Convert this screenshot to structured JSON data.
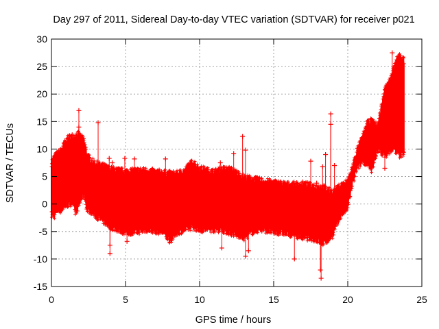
{
  "chart_data": {
    "type": "scatter",
    "title": "Day 297 of 2011, Sidereal Day-to-day VTEC variation (SDTVAR) for receiver p021",
    "xlabel": "GPS time / hours",
    "ylabel": "SDTVAR / TECUs",
    "xlim": [
      0,
      25
    ],
    "ylim": [
      -15,
      30
    ],
    "xticks": [
      0,
      5,
      10,
      15,
      20,
      25
    ],
    "yticks": [
      -15,
      -10,
      -5,
      0,
      5,
      10,
      15,
      20,
      25,
      30
    ],
    "grid": true,
    "marker": "plus",
    "color": "#ff0000",
    "series": [
      {
        "name": "SDTVAR",
        "note": "envelope of dense red point cloud: x in hours, low/high in TECU",
        "envelope": {
          "x": [
            0.0,
            0.2,
            0.4,
            0.6,
            0.8,
            1.0,
            1.2,
            1.4,
            1.6,
            1.8,
            2.0,
            2.2,
            2.4,
            2.6,
            3.0,
            3.5,
            4.0,
            4.5,
            5.0,
            5.5,
            6.0,
            6.5,
            7.0,
            7.5,
            8.0,
            8.5,
            9.0,
            9.3,
            9.6,
            9.9,
            10.2,
            10.5,
            11.0,
            11.5,
            12.0,
            12.5,
            13.0,
            13.5,
            14.0,
            14.5,
            15.0,
            15.5,
            16.0,
            16.5,
            17.0,
            17.5,
            18.0,
            18.3,
            18.6,
            19.0,
            19.5,
            20.0,
            20.3,
            20.6,
            21.0,
            21.3,
            21.6,
            22.0,
            22.3,
            22.6,
            22.9,
            23.2,
            23.5,
            23.8
          ],
          "high": [
            7.5,
            8.5,
            9.0,
            9.5,
            10.5,
            11.5,
            12.0,
            12.2,
            12.4,
            12.6,
            12.0,
            11.5,
            9.0,
            8.0,
            7.2,
            6.8,
            6.2,
            6.0,
            5.8,
            5.9,
            6.0,
            6.0,
            5.7,
            5.6,
            5.4,
            5.4,
            6.0,
            7.0,
            7.6,
            6.5,
            6.2,
            6.0,
            5.7,
            6.2,
            6.2,
            5.6,
            4.7,
            4.5,
            4.2,
            4.0,
            3.8,
            3.6,
            3.4,
            3.4,
            3.5,
            3.2,
            3.0,
            3.0,
            2.5,
            2.0,
            3.2,
            4.0,
            6.5,
            9.5,
            12.0,
            14.5,
            15.0,
            14.0,
            18.0,
            22.0,
            22.5,
            25.5,
            27.0,
            26.0
          ],
          "low": [
            -2.0,
            -2.0,
            -1.0,
            -1.0,
            -0.5,
            0.0,
            0.0,
            0.5,
            -1.5,
            -0.5,
            1.0,
            2.0,
            -1.0,
            -1.0,
            -2.0,
            -3.0,
            -4.0,
            -4.5,
            -5.0,
            -5.0,
            -4.8,
            -4.5,
            -4.7,
            -5.0,
            -6.5,
            -5.0,
            -4.5,
            -4.2,
            -4.0,
            -4.5,
            -4.5,
            -4.5,
            -4.5,
            -4.5,
            -5.0,
            -5.5,
            -6.0,
            -5.0,
            -4.5,
            -4.6,
            -5.0,
            -5.0,
            -5.3,
            -5.5,
            -6.0,
            -6.0,
            -6.5,
            -7.0,
            -6.5,
            -5.5,
            -2.0,
            -0.5,
            3.5,
            6.5,
            8.0,
            7.5,
            6.0,
            10.0,
            9.5,
            9.0,
            10.0,
            10.0,
            9.0,
            9.5
          ]
        },
        "outliers": [
          [
            1.85,
            17.0
          ],
          [
            1.85,
            14.0
          ],
          [
            3.15,
            14.8
          ],
          [
            4.1,
            7.5
          ],
          [
            3.9,
            8.3
          ],
          [
            3.95,
            -9.0
          ],
          [
            3.95,
            -7.5
          ],
          [
            4.95,
            8.3
          ],
          [
            5.1,
            -6.8
          ],
          [
            5.6,
            8.2
          ],
          [
            7.7,
            8.2
          ],
          [
            11.4,
            7.5
          ],
          [
            11.5,
            -8.0
          ],
          [
            12.3,
            9.2
          ],
          [
            12.9,
            12.3
          ],
          [
            13.1,
            9.8
          ],
          [
            13.1,
            -9.5
          ],
          [
            13.3,
            -8.5
          ],
          [
            16.4,
            -10.0
          ],
          [
            16.4,
            3.5
          ],
          [
            17.5,
            7.8
          ],
          [
            17.9,
            3.8
          ],
          [
            18.15,
            -12.0
          ],
          [
            18.2,
            -13.5
          ],
          [
            18.3,
            6.8
          ],
          [
            18.5,
            9.0
          ],
          [
            18.7,
            -5.0
          ],
          [
            18.85,
            16.4
          ],
          [
            18.85,
            14.5
          ],
          [
            19.1,
            7.0
          ],
          [
            22.5,
            6.5
          ],
          [
            23.0,
            27.5
          ]
        ]
      }
    ]
  }
}
